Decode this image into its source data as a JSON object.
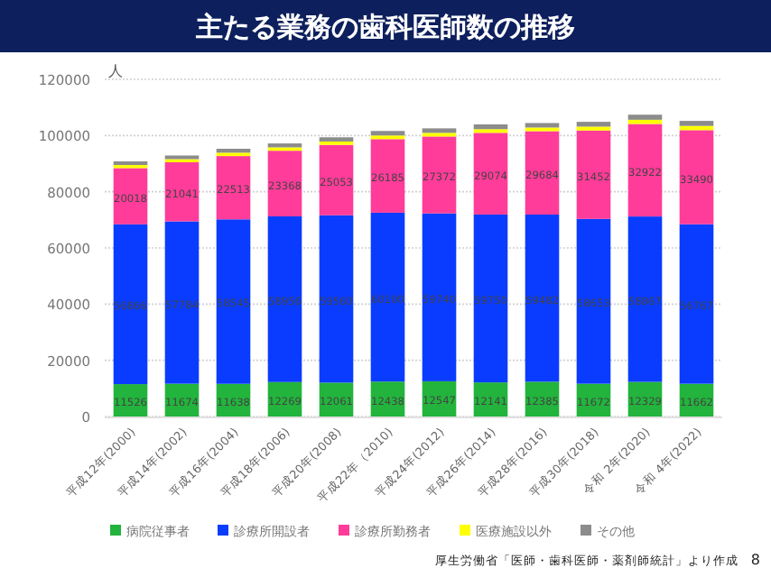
{
  "chart_data": {
    "type": "bar",
    "stacked": true,
    "title": "主たる業務の歯科医師数の推移",
    "ylabel": "人",
    "categories": [
      "平成12年(2000)",
      "平成14年(2002)",
      "平成16年(2004)",
      "平成18年(2006)",
      "平成20年(2008)",
      "平成22年（2010)",
      "平成24年(2012)",
      "平成26年(2014)",
      "平成28年(2016)",
      "平成30年(2018)",
      "令和 2年(2020)",
      "令和 4年(2022)"
    ],
    "series": [
      {
        "name": "病院従事者",
        "color": "#22b43c",
        "values": [
          11526,
          11674,
          11638,
          12269,
          12061,
          12438,
          12547,
          12141,
          12385,
          11672,
          12329,
          11662
        ],
        "value_labels": [
          "11526",
          "11674",
          "11638",
          "12269",
          "12061",
          "12438",
          "12547",
          "12141",
          "12385",
          "11672",
          "12329",
          "11662"
        ]
      },
      {
        "name": "診療所開設者",
        "color": "#0a3cff",
        "values": [
          56866,
          57784,
          58545,
          58956,
          59560,
          60100,
          59740,
          59750,
          59482,
          58653,
          58867,
          56767
        ],
        "value_labels": [
          "56866",
          "57784",
          "58545",
          "58956",
          "59560",
          "60100",
          "59740",
          "59750",
          "59482",
          "58653",
          "58867",
          "56767"
        ]
      },
      {
        "name": "診療所勤務者",
        "color": "#ff3c9a",
        "values": [
          20018,
          21041,
          22513,
          23368,
          25053,
          26185,
          27372,
          29074,
          29684,
          31452,
          32922,
          33490
        ],
        "value_labels": [
          "20018",
          "21041",
          "22513",
          "23368",
          "25053",
          "26185",
          "27372",
          "29074",
          "29684",
          "31452",
          "32922",
          "33490"
        ]
      },
      {
        "name": "医療施設以外",
        "color": "#ffff00",
        "values": [
          1100,
          1100,
          1200,
          1200,
          1200,
          1300,
          1300,
          1300,
          1300,
          1400,
          1500,
          1500
        ]
      },
      {
        "name": "その他",
        "color": "#8c8c8c",
        "values": [
          1300,
          1300,
          1400,
          1400,
          1500,
          1600,
          1600,
          1700,
          1600,
          1700,
          1800,
          1800
        ]
      }
    ],
    "ylim": [
      0,
      120000
    ],
    "yticks": [
      0,
      20000,
      40000,
      60000,
      80000,
      100000,
      120000
    ],
    "grid": "y",
    "legend": "bottom",
    "annotations": [
      "厚生労働省「医師・歯科医師・薬剤師統計」より作成",
      "8"
    ]
  }
}
